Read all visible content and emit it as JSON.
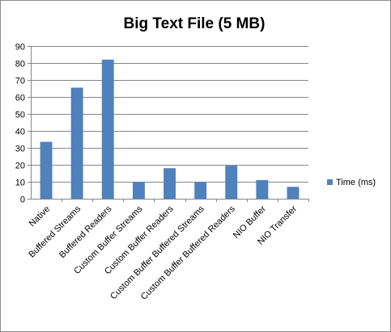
{
  "chart_data": {
    "type": "bar",
    "title": "Big Text File (5 MB)",
    "xlabel": "",
    "ylabel": "",
    "categories": [
      "Native",
      "Buffered Streams",
      "Buffered Readers",
      "Custom Buffer Streams",
      "Custom Buffer Readers",
      "Custom Buffer Buffered Streams",
      "Custom Buffer Buffered Readers",
      "NIO Buffer",
      "NIO Transfer"
    ],
    "series": [
      {
        "name": "Time (ms)",
        "color": "#4f81bd",
        "values": [
          33.5,
          65.5,
          82,
          10,
          18,
          10,
          19.5,
          11,
          7
        ]
      }
    ],
    "ylim": [
      0,
      90
    ],
    "yticks": [
      0,
      10,
      20,
      30,
      40,
      50,
      60,
      70,
      80,
      90
    ],
    "grid": true,
    "legend_position": "right"
  }
}
